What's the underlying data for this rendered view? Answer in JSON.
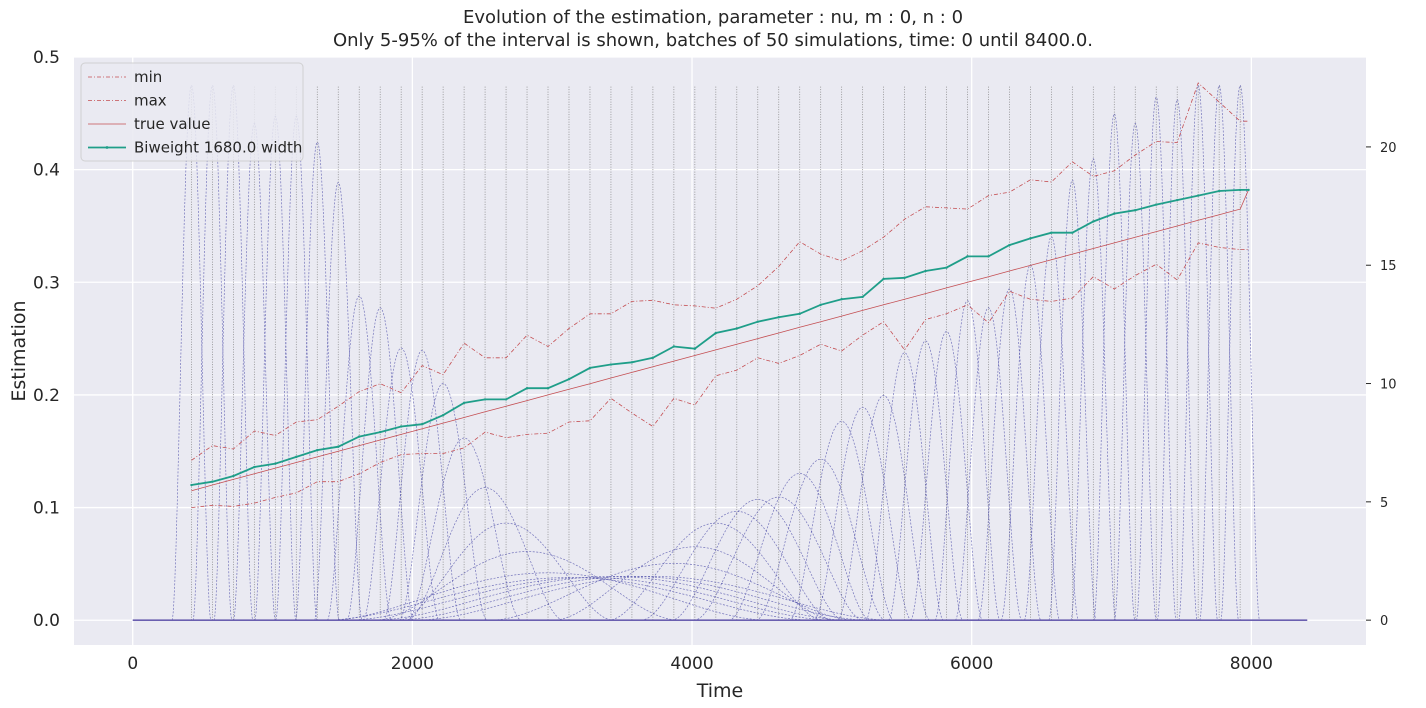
{
  "chart_data": {
    "type": "line",
    "title": "Evolution of the estimation, parameter : nu, m : 0, n : 0",
    "subtitle": "Only 5-95% of the interval is shown, batches of 50 simulations, time: 0 until 8400.0.",
    "xlabel": "Time",
    "ylabel": "Estimation",
    "xlim": [
      -420,
      8820
    ],
    "ylim": [
      -0.022,
      0.5
    ],
    "y2lim": [
      -1.05,
      23.8
    ],
    "x_ticks": [
      0,
      2000,
      4000,
      6000,
      8000
    ],
    "x_tick_labels": [
      "0",
      "2000",
      "4000",
      "6000",
      "8000"
    ],
    "y_ticks": [
      0.0,
      0.1,
      0.2,
      0.3,
      0.4,
      0.5
    ],
    "y_tick_labels": [
      "0.0",
      "0.1",
      "0.2",
      "0.3",
      "0.4",
      "0.5"
    ],
    "y2_ticks": [
      0,
      5,
      10,
      15,
      20
    ],
    "y2_tick_labels": [
      "0",
      "5",
      "10",
      "15",
      "20"
    ],
    "grid": true,
    "legend_placement": "top-left",
    "colors": {
      "background": "#eaeaf2",
      "grid": "#ffffff",
      "min_max": "#c44e52",
      "true_value": "#c44e52",
      "biweight": "#1f9e89",
      "kernels": "#4c4ca8",
      "batch_markers": "#808080"
    },
    "x": [
      420,
      570,
      720,
      870,
      1020,
      1170,
      1320,
      1470,
      1620,
      1770,
      1920,
      2070,
      2220,
      2370,
      2520,
      2670,
      2820,
      2970,
      3120,
      3270,
      3420,
      3570,
      3720,
      3870,
      4020,
      4170,
      4320,
      4470,
      4620,
      4770,
      4920,
      5070,
      5220,
      5370,
      5520,
      5670,
      5820,
      5970,
      6120,
      6270,
      6420,
      6570,
      6720,
      6870,
      7020,
      7170,
      7320,
      7470,
      7620,
      7770,
      7920,
      7980
    ],
    "series": [
      {
        "name": "min",
        "values": [
          0.1,
          0.102,
          0.101,
          0.104,
          0.109,
          0.113,
          0.123,
          0.123,
          0.13,
          0.14,
          0.147,
          0.148,
          0.148,
          0.153,
          0.167,
          0.162,
          0.165,
          0.166,
          0.176,
          0.177,
          0.197,
          0.184,
          0.172,
          0.197,
          0.191,
          0.217,
          0.222,
          0.233,
          0.228,
          0.235,
          0.245,
          0.239,
          0.253,
          0.265,
          0.24,
          0.267,
          0.272,
          0.28,
          0.264,
          0.292,
          0.285,
          0.283,
          0.286,
          0.305,
          0.294,
          0.306,
          0.316,
          0.302,
          0.335,
          0.331,
          0.329,
          0.329
        ]
      },
      {
        "name": "max",
        "values": [
          0.142,
          0.155,
          0.152,
          0.168,
          0.164,
          0.176,
          0.178,
          0.19,
          0.203,
          0.21,
          0.202,
          0.226,
          0.218,
          0.246,
          0.233,
          0.233,
          0.253,
          0.243,
          0.259,
          0.272,
          0.272,
          0.283,
          0.284,
          0.28,
          0.279,
          0.277,
          0.285,
          0.297,
          0.314,
          0.336,
          0.325,
          0.319,
          0.328,
          0.34,
          0.356,
          0.367,
          0.366,
          0.365,
          0.377,
          0.38,
          0.391,
          0.389,
          0.407,
          0.394,
          0.399,
          0.413,
          0.425,
          0.424,
          0.477,
          0.46,
          0.443,
          0.443
        ]
      },
      {
        "name": "true value",
        "values": [
          0.115,
          0.12,
          0.125,
          0.13,
          0.135,
          0.14,
          0.145,
          0.15,
          0.155,
          0.16,
          0.165,
          0.17,
          0.175,
          0.18,
          0.185,
          0.19,
          0.195,
          0.2,
          0.205,
          0.21,
          0.215,
          0.22,
          0.225,
          0.23,
          0.235,
          0.24,
          0.245,
          0.25,
          0.255,
          0.26,
          0.265,
          0.27,
          0.275,
          0.28,
          0.285,
          0.29,
          0.295,
          0.3,
          0.305,
          0.31,
          0.315,
          0.32,
          0.325,
          0.33,
          0.335,
          0.34,
          0.345,
          0.35,
          0.355,
          0.36,
          0.365,
          0.382
        ]
      },
      {
        "name": "Biweight 1680.0 width",
        "values": [
          0.12,
          0.123,
          0.128,
          0.136,
          0.139,
          0.145,
          0.151,
          0.154,
          0.163,
          0.167,
          0.172,
          0.174,
          0.182,
          0.193,
          0.196,
          0.196,
          0.206,
          0.206,
          0.214,
          0.224,
          0.227,
          0.229,
          0.233,
          0.243,
          0.241,
          0.255,
          0.259,
          0.265,
          0.269,
          0.272,
          0.28,
          0.285,
          0.287,
          0.303,
          0.304,
          0.31,
          0.313,
          0.323,
          0.323,
          0.333,
          0.339,
          0.344,
          0.344,
          0.354,
          0.361,
          0.364,
          0.369,
          0.373,
          0.377,
          0.381,
          0.382,
          0.382
        ]
      }
    ],
    "kernels": {
      "axis": "right",
      "peak_times": [
        420,
        570,
        720,
        870,
        1020,
        1170,
        1320,
        1470,
        1620,
        1770,
        1920,
        2070,
        2220,
        2370,
        2520,
        2670,
        2820,
        2970,
        3120,
        3270,
        3420,
        3570,
        3720,
        3870,
        4020,
        4170,
        4320,
        4470,
        4620,
        4770,
        4920,
        5070,
        5220,
        5370,
        5520,
        5670,
        5820,
        5970,
        6120,
        6270,
        6420,
        6570,
        6720,
        6870,
        7020,
        7170,
        7320,
        7470,
        7620,
        7770,
        7920
      ],
      "peak_heights": [
        22.6,
        22.6,
        22.6,
        21.0,
        21.3,
        21.3,
        20.2,
        18.5,
        13.7,
        13.2,
        11.5,
        11.4,
        10.0,
        7.7,
        5.6,
        4.1,
        2.9,
        2.0,
        1.8,
        1.8,
        1.85,
        1.85,
        1.85,
        2.4,
        3.1,
        4.1,
        4.6,
        5.1,
        5.2,
        6.2,
        6.8,
        8.4,
        9.0,
        9.5,
        11.3,
        11.8,
        12.2,
        13.5,
        13.2,
        14.0,
        15.0,
        16.2,
        18.6,
        19.5,
        21.4,
        21.0,
        22.1,
        22.0,
        22.6,
        22.6,
        22.6
      ],
      "batch_marker_height": 22.6
    }
  }
}
